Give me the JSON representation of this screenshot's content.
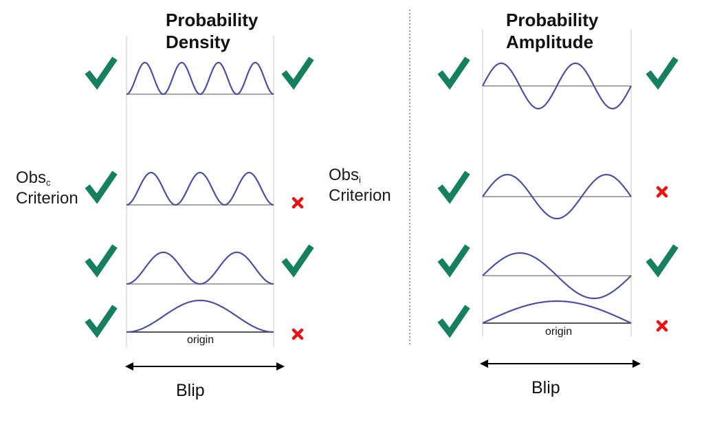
{
  "left_panel": {
    "title_line1": "Probability",
    "title_line2": "Density",
    "criterion_main_line1": "Obs",
    "criterion_sub": "c",
    "criterion_line2": "Criterion",
    "origin_label": "origin",
    "blip_label": "Blip",
    "rows": [
      {
        "left": "check",
        "right": "check"
      },
      {
        "left": "check",
        "right": "cross"
      },
      {
        "left": "check",
        "right": "check"
      },
      {
        "left": "check",
        "right": "cross"
      }
    ]
  },
  "right_panel": {
    "title_line1": "Probability",
    "title_line2": "Amplitude",
    "criterion_main_line1": "Obs",
    "criterion_sub": "i",
    "criterion_line2": "Criterion",
    "origin_label": "origin",
    "blip_label": "Blip",
    "rows": [
      {
        "left": "check",
        "right": "check"
      },
      {
        "left": "check",
        "right": "cross"
      },
      {
        "left": "check",
        "right": "check"
      },
      {
        "left": "check",
        "right": "cross"
      }
    ]
  },
  "colors": {
    "check": "#15805f",
    "cross": "#ee1111",
    "wave": "#4a4fa3"
  }
}
